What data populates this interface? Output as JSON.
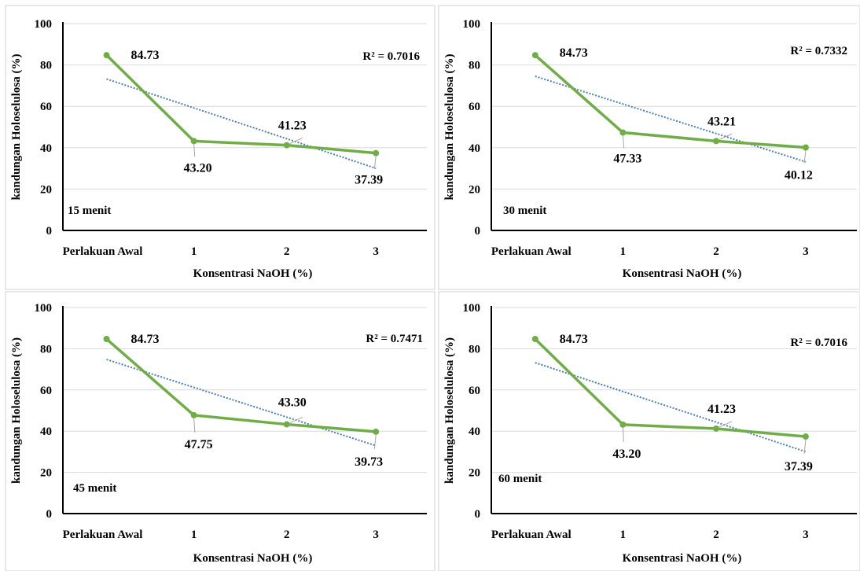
{
  "chart_data": [
    {
      "type": "line",
      "categories": [
        "Perlakuan Awal",
        "1",
        "2",
        "3"
      ],
      "values": [
        84.73,
        43.2,
        41.23,
        37.39
      ],
      "data_labels": [
        "84.73",
        "43.20",
        "41.23",
        "37.39"
      ],
      "trendline": {
        "type": "linear",
        "r2_label": "R² = 0.7016"
      },
      "annotation": "15 menit",
      "xlabel": "Konsentrasi NaOH (%)",
      "ylabel": "kandungan Holoselulosa (%)",
      "ylim": [
        0,
        100
      ],
      "yticks": [
        0,
        20,
        40,
        60,
        80,
        100
      ],
      "grid": true,
      "colors": {
        "series": "#70ad47",
        "trend": "#4a7ebb"
      }
    },
    {
      "type": "line",
      "categories": [
        "Perlakuan Awal",
        "1",
        "2",
        "3"
      ],
      "values": [
        84.73,
        47.33,
        43.21,
        40.12
      ],
      "data_labels": [
        "84.73",
        "47.33",
        "43.21",
        "40.12"
      ],
      "trendline": {
        "type": "linear",
        "r2_label": "R² = 0.7332"
      },
      "annotation": "30 menit",
      "xlabel": "Konsentrasi NaOH (%)",
      "ylabel": "kandungan Holoselulosa (%)",
      "ylim": [
        0,
        100
      ],
      "yticks": [
        0,
        20,
        40,
        60,
        80,
        100
      ],
      "grid": true,
      "colors": {
        "series": "#70ad47",
        "trend": "#4a7ebb"
      }
    },
    {
      "type": "line",
      "categories": [
        "Perlakuan Awal",
        "1",
        "2",
        "3"
      ],
      "values": [
        84.73,
        47.75,
        43.3,
        39.73
      ],
      "data_labels": [
        "84.73",
        "47.75",
        "43.30",
        "39.73"
      ],
      "trendline": {
        "type": "linear",
        "r2_label": "R² = 0.7471"
      },
      "annotation": "45 menit",
      "xlabel": "Konsentrasi NaOH (%)",
      "ylabel": "kandungan Holoselulosa (%)",
      "ylim": [
        0,
        100
      ],
      "yticks": [
        0,
        20,
        40,
        60,
        80,
        100
      ],
      "grid": true,
      "colors": {
        "series": "#70ad47",
        "trend": "#4a7ebb"
      }
    },
    {
      "type": "line",
      "categories": [
        "Perlakuan Awal",
        "1",
        "2",
        "3"
      ],
      "values": [
        84.73,
        43.2,
        41.23,
        37.39
      ],
      "data_labels": [
        "84.73",
        "43.20",
        "41.23",
        "37.39"
      ],
      "trendline": {
        "type": "linear",
        "r2_label": "R² = 0.7016"
      },
      "annotation": "60 menit",
      "xlabel": "Konsentrasi NaOH (%)",
      "ylabel": "kandungan Holoselulosa (%)",
      "ylim": [
        0,
        100
      ],
      "yticks": [
        0,
        20,
        40,
        60,
        80,
        100
      ],
      "grid": true,
      "colors": {
        "series": "#70ad47",
        "trend": "#4a7ebb"
      }
    }
  ]
}
